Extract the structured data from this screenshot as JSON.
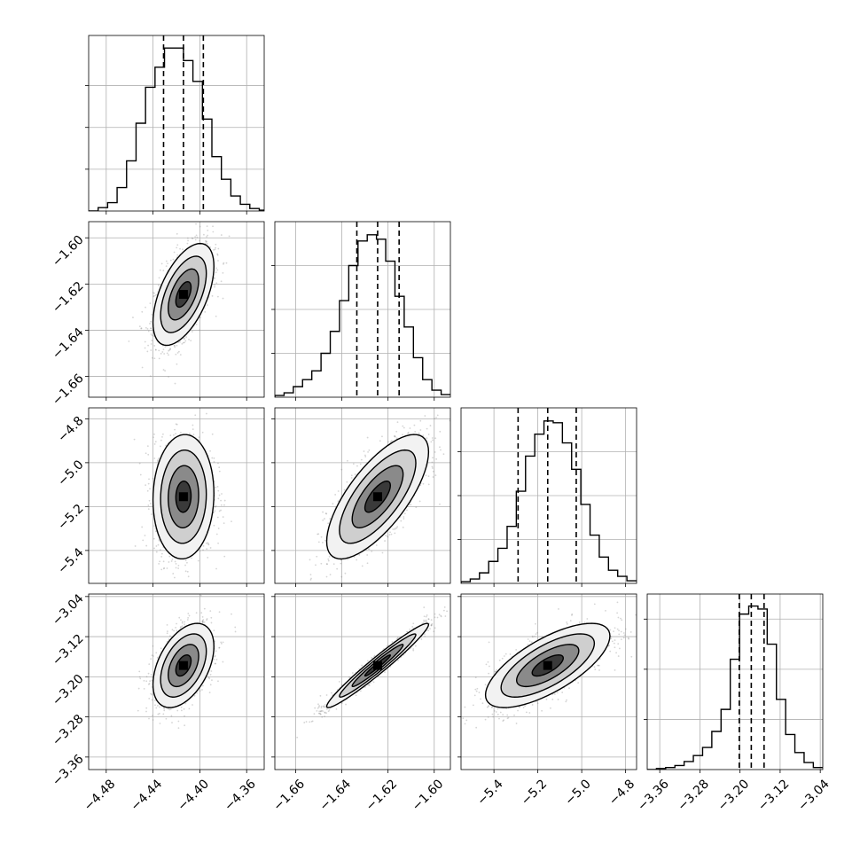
{
  "chart_data": {
    "type": "corner",
    "grid": true,
    "params": [
      {
        "range": [
          -4.495,
          -4.345
        ],
        "ticks": [
          -4.48,
          -4.44,
          -4.4,
          -4.36
        ],
        "tick_labels": [
          "−4.48",
          "−4.44",
          "−4.40",
          "−4.36"
        ],
        "quantiles": [
          -4.431,
          -4.414,
          -4.397
        ],
        "histogram": {
          "bin_edges": [
            -4.495,
            -4.4869,
            -4.4788,
            -4.4707,
            -4.4626,
            -4.4545,
            -4.4464,
            -4.4383,
            -4.4302,
            -4.4221,
            -4.414,
            -4.4059,
            -4.3978,
            -4.3897,
            -4.3816,
            -4.3735,
            -4.3654,
            -4.3573,
            -4.3492,
            -4.345
          ],
          "counts": [
            0,
            4,
            10,
            28,
            60,
            105,
            148,
            172,
            195,
            195,
            180,
            155,
            110,
            65,
            38,
            18,
            8,
            3,
            1
          ],
          "ylim": [
            0,
            210
          ],
          "yticks": [
            50,
            100,
            150
          ]
        }
      },
      {
        "range": [
          -1.669,
          -1.593
        ],
        "ticks": [
          -1.66,
          -1.64,
          -1.62,
          -1.6
        ],
        "tick_labels": [
          "−1.66",
          "−1.64",
          "−1.62",
          "−1.60"
        ],
        "quantiles": [
          -1.6335,
          -1.6245,
          -1.6152
        ],
        "histogram": {
          "bin_edges": [
            -1.669,
            -1.665,
            -1.661,
            -1.657,
            -1.653,
            -1.649,
            -1.645,
            -1.641,
            -1.637,
            -1.633,
            -1.629,
            -1.625,
            -1.621,
            -1.617,
            -1.613,
            -1.609,
            -1.605,
            -1.601,
            -1.597,
            -1.593
          ],
          "counts": [
            2,
            5,
            12,
            20,
            30,
            50,
            75,
            110,
            150,
            178,
            185,
            180,
            155,
            115,
            80,
            45,
            20,
            8,
            3
          ],
          "ylim": [
            0,
            200
          ],
          "yticks": [
            50,
            100,
            150
          ]
        }
      },
      {
        "range": [
          -5.55,
          -4.75
        ],
        "ticks": [
          -5.4,
          -5.2,
          -5.0,
          -4.8
        ],
        "tick_labels": [
          "−5.4",
          "−5.2",
          "−5.0",
          "−4.8"
        ],
        "quantiles": [
          -5.29,
          -5.155,
          -5.025
        ],
        "histogram": {
          "bin_edges": [
            -5.55,
            -5.508,
            -5.466,
            -5.424,
            -5.382,
            -5.34,
            -5.298,
            -5.256,
            -5.214,
            -5.172,
            -5.13,
            -5.088,
            -5.046,
            -5.004,
            -4.962,
            -4.92,
            -4.878,
            -4.836,
            -4.794,
            -4.75
          ],
          "counts": [
            2,
            5,
            12,
            25,
            40,
            65,
            105,
            145,
            170,
            185,
            183,
            160,
            130,
            90,
            55,
            30,
            15,
            8,
            3
          ],
          "ylim": [
            0,
            200
          ],
          "yticks": [
            50,
            100,
            150
          ]
        }
      },
      {
        "range": [
          -3.385,
          -3.035
        ],
        "ticks": [
          -3.36,
          -3.28,
          -3.2,
          -3.12,
          -3.04
        ],
        "tick_labels": [
          "−3.36",
          "−3.28",
          "−3.20",
          "−3.12",
          "−3.04"
        ],
        "quantiles": [
          -3.2015,
          -3.1775,
          -3.152
        ],
        "histogram": {
          "bin_edges": [
            -3.385,
            -3.3666,
            -3.3482,
            -3.3298,
            -3.3114,
            -3.293,
            -3.2746,
            -3.2562,
            -3.2378,
            -3.2194,
            -3.201,
            -3.1826,
            -3.1642,
            -3.1458,
            -3.1274,
            -3.109,
            -3.0906,
            -3.0722,
            -3.0538,
            -3.035
          ],
          "counts": [
            0,
            1,
            2,
            4,
            8,
            14,
            22,
            38,
            60,
            110,
            155,
            163,
            160,
            125,
            70,
            35,
            17,
            7,
            2
          ],
          "ylim": [
            0,
            175
          ],
          "yticks": [
            50,
            100,
            150
          ]
        }
      }
    ],
    "pairs": [
      {
        "x": 0,
        "y": 1,
        "center": [
          -4.414,
          -1.6245
        ],
        "sd": [
          0.0124,
          0.0105
        ],
        "rho": 0.55
      },
      {
        "x": 0,
        "y": 2,
        "center": [
          -4.414,
          -5.155
        ],
        "sd": [
          0.0124,
          0.135
        ],
        "rho": 0.05
      },
      {
        "x": 1,
        "y": 2,
        "center": [
          -1.6245,
          -5.155
        ],
        "sd": [
          0.0105,
          0.135
        ],
        "rho": 0.72
      },
      {
        "x": 0,
        "y": 3,
        "center": [
          -4.414,
          -3.1775
        ],
        "sd": [
          0.0124,
          0.04
        ],
        "rho": 0.45
      },
      {
        "x": 1,
        "y": 3,
        "center": [
          -1.6245,
          -3.1775
        ],
        "sd": [
          0.0105,
          0.04
        ],
        "rho": 0.97
      },
      {
        "x": 2,
        "y": 3,
        "center": [
          -5.155,
          -3.1775
        ],
        "sd": [
          0.135,
          0.04
        ],
        "rho": 0.7
      }
    ],
    "contour_levels_sigma": [
      0.5,
      1.0,
      1.5,
      2.0
    ]
  }
}
